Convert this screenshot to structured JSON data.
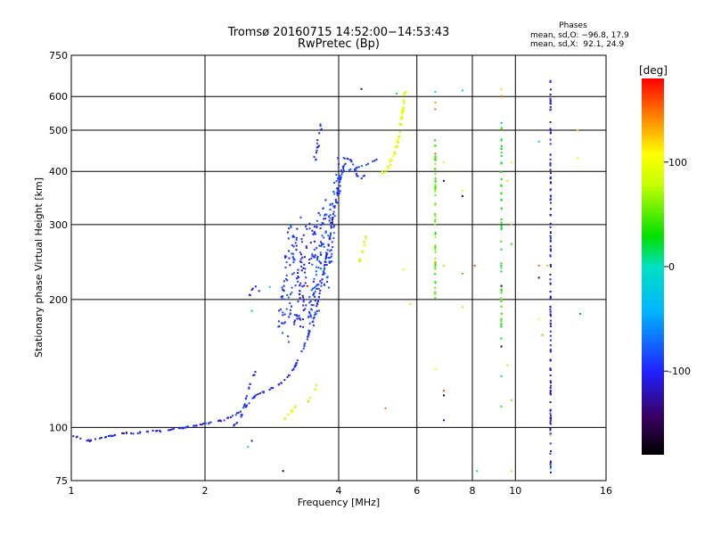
{
  "chart_data": {
    "type": "scatter",
    "title": "Tromsø 20160715 14:52:00−14:53:43",
    "subtitle": "RwPretec (Bp)",
    "xlabel": "Frequency [MHz]",
    "ylabel": "Stationary phase Virtual Height [km]",
    "x_scale": "log",
    "y_scale": "log",
    "xlim": [
      1,
      16
    ],
    "ylim": [
      75,
      750
    ],
    "x_ticks": [
      1,
      2,
      4,
      6,
      8,
      10,
      16
    ],
    "y_ticks": [
      75,
      100,
      200,
      300,
      400,
      500,
      600,
      750
    ],
    "x_gridlines": [
      2,
      4,
      6,
      8,
      10
    ],
    "y_gridlines": [
      100,
      200,
      300,
      400,
      500,
      600
    ],
    "grid": true,
    "phase_info": {
      "heading": "Phases",
      "line_o": "mean, sd,O: −96.8, 17.9",
      "line_x": "mean, sd,X:  92.1, 24.9"
    },
    "colorbar": {
      "unit": "[deg]",
      "range": [
        -180,
        180
      ],
      "ticks": [
        100,
        0,
        -100
      ],
      "placement": "right"
    },
    "traces": [
      {
        "name": "",
        "phase": -100,
        "density": 4,
        "spread": 1.5,
        "points": [
          [
            1.0,
            96
          ],
          [
            1.1,
            93
          ],
          [
            1.2,
            95
          ],
          [
            1.3,
            97
          ],
          [
            1.4,
            97
          ],
          [
            1.5,
            98
          ],
          [
            1.6,
            98
          ],
          [
            1.7,
            99
          ],
          [
            1.8,
            100
          ],
          [
            1.9,
            101
          ],
          [
            2.0,
            102
          ],
          [
            2.1,
            103
          ],
          [
            2.2,
            104
          ],
          [
            2.3,
            106
          ],
          [
            2.4,
            109
          ],
          [
            2.5,
            113
          ],
          [
            2.6,
            119
          ],
          [
            2.7,
            121
          ],
          [
            2.8,
            123
          ],
          [
            2.9,
            125
          ],
          [
            3.0,
            128
          ],
          [
            3.1,
            133
          ],
          [
            3.2,
            140
          ],
          [
            3.3,
            150
          ],
          [
            3.4,
            162
          ],
          [
            3.5,
            178
          ],
          [
            3.6,
            200
          ],
          [
            3.7,
            232
          ],
          [
            3.8,
            270
          ],
          [
            3.9,
            320
          ],
          [
            4.0,
            370
          ],
          [
            4.1,
            410
          ],
          [
            4.2,
            430
          ],
          [
            4.3,
            420
          ],
          [
            4.4,
            390
          ],
          [
            4.5,
            385
          ],
          [
            4.6,
            395
          ]
        ]
      },
      {
        "name": "",
        "phase": -100,
        "density": 3,
        "spread": 1.5,
        "points": [
          [
            2.3,
            100
          ],
          [
            2.4,
            104
          ],
          [
            2.45,
            112
          ],
          [
            2.5,
            122
          ],
          [
            2.55,
            130
          ],
          [
            2.6,
            135
          ]
        ]
      },
      {
        "name": "",
        "phase": -95,
        "density": 6,
        "spread": 22,
        "points": [
          [
            3.0,
            165
          ],
          [
            3.05,
            200
          ],
          [
            3.1,
            240
          ],
          [
            3.15,
            280
          ],
          [
            3.2,
            300
          ]
        ]
      },
      {
        "name": "",
        "phase": -105,
        "density": 7,
        "spread": 22,
        "points": [
          [
            3.25,
            175
          ],
          [
            3.3,
            210
          ],
          [
            3.35,
            250
          ],
          [
            3.4,
            270
          ],
          [
            3.45,
            290
          ]
        ]
      },
      {
        "name": "",
        "phase": -90,
        "density": 7,
        "spread": 20,
        "points": [
          [
            3.5,
            175
          ],
          [
            3.55,
            220
          ],
          [
            3.6,
            260
          ],
          [
            3.65,
            300
          ],
          [
            3.7,
            330
          ]
        ]
      },
      {
        "name": "",
        "phase": -85,
        "density": 5,
        "spread": 14,
        "points": [
          [
            3.75,
            215
          ],
          [
            3.8,
            250
          ],
          [
            3.85,
            300
          ],
          [
            3.9,
            340
          ],
          [
            4.0,
            380
          ],
          [
            4.05,
            420
          ],
          [
            4.1,
            440
          ]
        ]
      },
      {
        "name": "",
        "phase": -110,
        "density": 3,
        "spread": 2,
        "points": [
          [
            2.52,
            205
          ],
          [
            2.55,
            210
          ],
          [
            2.6,
            215
          ],
          [
            2.65,
            210
          ]
        ]
      },
      {
        "name": "",
        "phase": -100,
        "density": 3,
        "spread": 5,
        "points": [
          [
            3.5,
            410
          ],
          [
            3.55,
            430
          ],
          [
            3.6,
            470
          ],
          [
            3.65,
            520
          ]
        ]
      },
      {
        "name": "",
        "phase": 92,
        "density": 6,
        "spread": 4,
        "points": [
          [
            5.0,
            395
          ],
          [
            5.1,
            400
          ],
          [
            5.2,
            415
          ],
          [
            5.3,
            430
          ],
          [
            5.4,
            460
          ],
          [
            5.5,
            500
          ],
          [
            5.55,
            540
          ],
          [
            5.6,
            580
          ],
          [
            5.65,
            620
          ]
        ]
      },
      {
        "name": "",
        "phase": 85,
        "density": 4,
        "spread": 4,
        "points": [
          [
            4.4,
            240
          ],
          [
            4.5,
            255
          ],
          [
            4.6,
            280
          ]
        ]
      },
      {
        "name": "",
        "phase": 95,
        "density": 3,
        "spread": 3,
        "points": [
          [
            3.0,
            104
          ],
          [
            3.1,
            107
          ],
          [
            3.2,
            112
          ]
        ]
      },
      {
        "name": "",
        "phase": 80,
        "density": 3,
        "spread": 3,
        "points": [
          [
            3.4,
            115
          ],
          [
            3.5,
            120
          ],
          [
            3.6,
            128
          ]
        ]
      },
      {
        "name": "",
        "phase": -90,
        "density": 3,
        "spread": 2,
        "points": [
          [
            4.1,
            400
          ],
          [
            4.3,
            405
          ],
          [
            4.5,
            410
          ],
          [
            4.7,
            420
          ],
          [
            4.9,
            430
          ]
        ]
      },
      {
        "name": "",
        "phase": -110,
        "density": 3,
        "spread": 1,
        "points": [
          [
            12.0,
            78
          ],
          [
            12.0,
            120
          ],
          [
            12.0,
            180
          ],
          [
            12.0,
            260
          ],
          [
            12.0,
            380
          ],
          [
            12.0,
            520
          ],
          [
            12.0,
            660
          ]
        ]
      },
      {
        "name": "",
        "phase": 50,
        "density": 3,
        "spread": 1,
        "points": [
          [
            6.6,
            200
          ],
          [
            6.6,
            280
          ],
          [
            6.6,
            380
          ],
          [
            6.6,
            480
          ]
        ]
      },
      {
        "name": "",
        "phase": 30,
        "density": 2,
        "spread": 1,
        "points": [
          [
            9.3,
            160
          ],
          [
            9.3,
            260
          ],
          [
            9.3,
            400
          ],
          [
            9.3,
            520
          ]
        ]
      }
    ],
    "scatter_points": [
      {
        "x": 4.5,
        "y": 625,
        "phase": -130
      },
      {
        "x": 5.4,
        "y": 610,
        "phase": 30
      },
      {
        "x": 6.6,
        "y": 615,
        "phase": -10
      },
      {
        "x": 7.6,
        "y": 620,
        "phase": -20
      },
      {
        "x": 9.3,
        "y": 625,
        "phase": 120
      },
      {
        "x": 9.3,
        "y": 600,
        "phase": 160
      },
      {
        "x": 6.6,
        "y": 580,
        "phase": 140
      },
      {
        "x": 6.6,
        "y": 560,
        "phase": 150
      },
      {
        "x": 6.6,
        "y": 440,
        "phase": 160
      },
      {
        "x": 6.9,
        "y": 420,
        "phase": 110
      },
      {
        "x": 6.9,
        "y": 380,
        "phase": -130
      },
      {
        "x": 7.6,
        "y": 350,
        "phase": -150
      },
      {
        "x": 7.6,
        "y": 360,
        "phase": 90
      },
      {
        "x": 9.3,
        "y": 520,
        "phase": -30
      },
      {
        "x": 9.8,
        "y": 420,
        "phase": 100
      },
      {
        "x": 9.6,
        "y": 380,
        "phase": 120
      },
      {
        "x": 11.3,
        "y": 470,
        "phase": -20
      },
      {
        "x": 13.8,
        "y": 500,
        "phase": 120
      },
      {
        "x": 13.8,
        "y": 430,
        "phase": 110
      },
      {
        "x": 9.8,
        "y": 300,
        "phase": 60
      },
      {
        "x": 9.8,
        "y": 270,
        "phase": 40
      },
      {
        "x": 6.6,
        "y": 265,
        "phase": 30
      },
      {
        "x": 6.6,
        "y": 245,
        "phase": 140
      },
      {
        "x": 5.6,
        "y": 235,
        "phase": 90
      },
      {
        "x": 8.1,
        "y": 240,
        "phase": 160
      },
      {
        "x": 6.9,
        "y": 240,
        "phase": 120
      },
      {
        "x": 7.6,
        "y": 230,
        "phase": 40
      },
      {
        "x": 11.3,
        "y": 240,
        "phase": 150
      },
      {
        "x": 11.3,
        "y": 225,
        "phase": -150
      },
      {
        "x": 11.8,
        "y": 240,
        "phase": 60
      },
      {
        "x": 9.3,
        "y": 215,
        "phase": -140
      },
      {
        "x": 5.8,
        "y": 195,
        "phase": 120
      },
      {
        "x": 7.6,
        "y": 192,
        "phase": 120
      },
      {
        "x": 9.3,
        "y": 200,
        "phase": 80
      },
      {
        "x": 11.3,
        "y": 180,
        "phase": 110
      },
      {
        "x": 14.0,
        "y": 185,
        "phase": -60
      },
      {
        "x": 2.55,
        "y": 188,
        "phase": 20
      },
      {
        "x": 2.8,
        "y": 214,
        "phase": -20
      },
      {
        "x": 3.4,
        "y": 215,
        "phase": 180
      },
      {
        "x": 4.0,
        "y": 250,
        "phase": 10
      },
      {
        "x": 3.7,
        "y": 235,
        "phase": 0
      },
      {
        "x": 9.3,
        "y": 155,
        "phase": -160
      },
      {
        "x": 11.5,
        "y": 165,
        "phase": 140
      },
      {
        "x": 9.6,
        "y": 140,
        "phase": 120
      },
      {
        "x": 6.6,
        "y": 137,
        "phase": 110
      },
      {
        "x": 9.3,
        "y": 132,
        "phase": -20
      },
      {
        "x": 6.9,
        "y": 122,
        "phase": 160
      },
      {
        "x": 6.9,
        "y": 119,
        "phase": -160
      },
      {
        "x": 9.8,
        "y": 116,
        "phase": 60
      },
      {
        "x": 9.3,
        "y": 112,
        "phase": 40
      },
      {
        "x": 5.1,
        "y": 111,
        "phase": 150
      },
      {
        "x": 6.9,
        "y": 104,
        "phase": -120
      },
      {
        "x": 2.5,
        "y": 90,
        "phase": -20
      },
      {
        "x": 2.55,
        "y": 93,
        "phase": -130
      },
      {
        "x": 3.0,
        "y": 79,
        "phase": -160
      },
      {
        "x": 8.2,
        "y": 79,
        "phase": -20
      },
      {
        "x": 9.8,
        "y": 79,
        "phase": 120
      },
      {
        "x": 12.0,
        "y": 80,
        "phase": -10
      },
      {
        "x": 3.2,
        "y": 112,
        "phase": 70
      },
      {
        "x": 12.0,
        "y": 96,
        "phase": 130
      }
    ]
  }
}
